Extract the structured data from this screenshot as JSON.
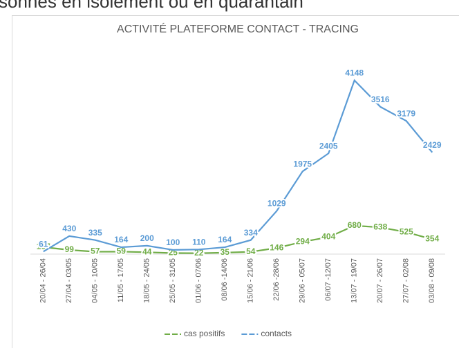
{
  "header_text": "sonnes en isolement ou en quarantain",
  "chart_data": {
    "type": "line",
    "title": "ACTIVITÉ PLATEFORME CONTACT - TRACING",
    "categories": [
      "20/04 - 26/04",
      "27/04 - 03/05",
      "04/05 - 10/05",
      "11/05 - 17/05",
      "18/05 - 24/05",
      "25/05 - 31/05",
      "01/06 - 07/06",
      "08/06 -14/06",
      "15/06 - 21/06",
      "22/06 -28/06",
      "29/06 - 05/07",
      "06/07 -12/07",
      "13/07 - 19/07",
      "20/07 - 26/07",
      "27/07 - 02/08",
      "03/08 - 09/08"
    ],
    "series": [
      {
        "name": "cas positifs",
        "color": "#70ad47",
        "values": [
          167,
          99,
          57,
          59,
          44,
          25,
          22,
          35,
          54,
          146,
          294,
          404,
          680,
          638,
          525,
          354
        ]
      },
      {
        "name": "contacts",
        "color": "#5b9bd5",
        "values": [
          61,
          430,
          335,
          164,
          200,
          100,
          110,
          164,
          334,
          1029,
          1975,
          2405,
          4148,
          3516,
          3179,
          2429
        ]
      }
    ],
    "ylim": [
      0,
      4500
    ],
    "grid": false,
    "legend": "bottom"
  }
}
